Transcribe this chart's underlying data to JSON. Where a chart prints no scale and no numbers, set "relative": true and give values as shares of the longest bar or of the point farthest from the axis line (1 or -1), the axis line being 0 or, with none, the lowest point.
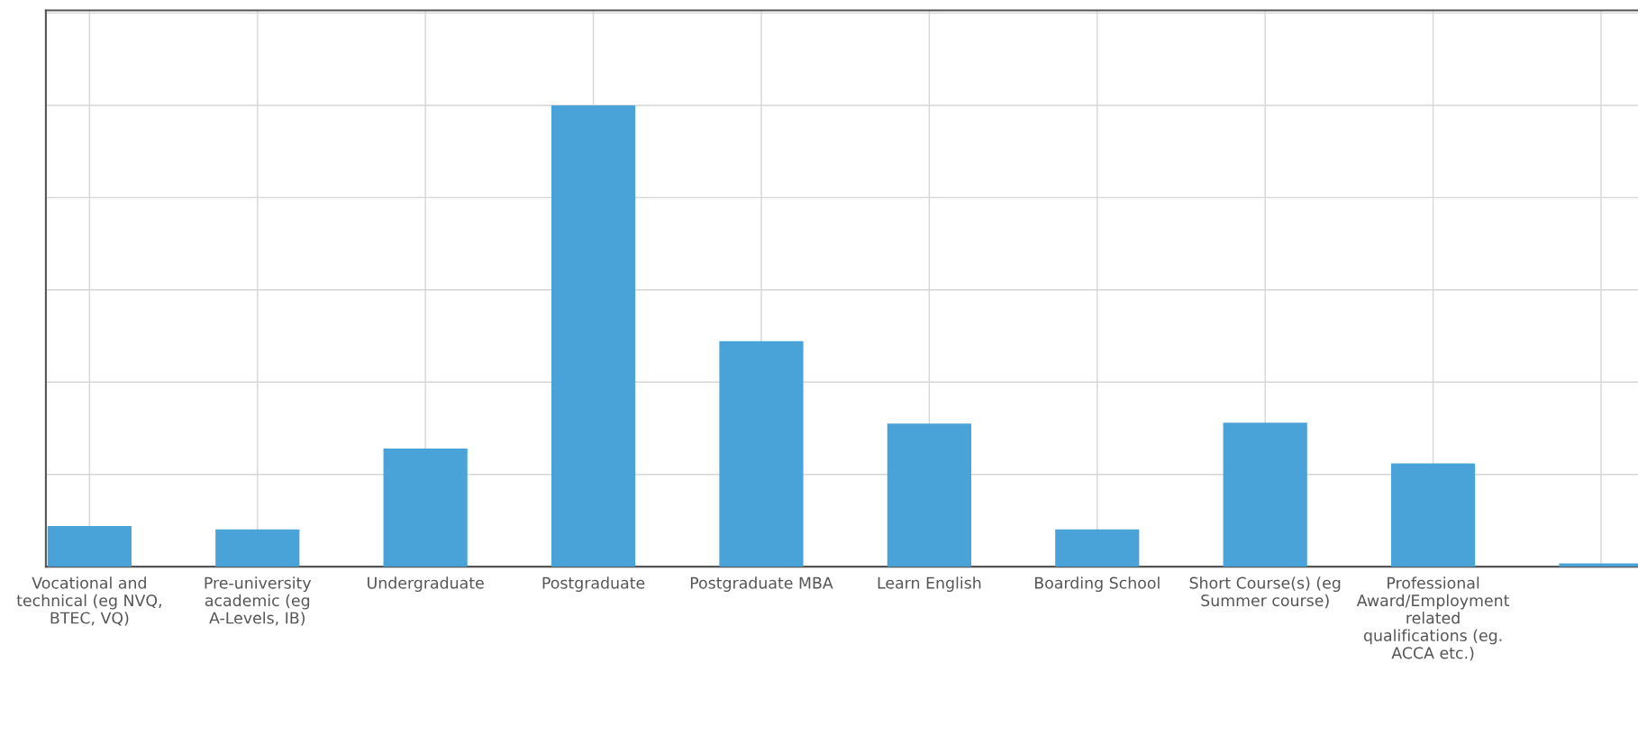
{
  "chart_data": {
    "type": "bar",
    "relative": true,
    "grid": true,
    "color": "#4aa3d8",
    "categories": [
      "Vocational and technical (eg NVQ, BTEC, VQ)",
      "Pre-university academic (eg A-Levels, IB)",
      "Undergraduate",
      "Postgraduate",
      "Postgraduate MBA",
      "Learn English",
      "Boarding School",
      "Short Course(s) (eg Summer course)",
      "Professional Award/Employment related qualifications (eg. ACCA etc.)",
      null
    ],
    "values": [
      0.088,
      0.081,
      0.256,
      1,
      0.489,
      0.31,
      0.081,
      0.312,
      0.224,
      0.007
    ]
  }
}
